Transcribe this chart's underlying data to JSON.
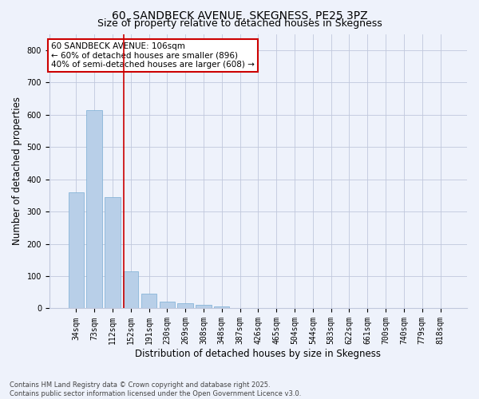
{
  "title": "60, SANDBECK AVENUE, SKEGNESS, PE25 3PZ",
  "subtitle": "Size of property relative to detached houses in Skegness",
  "xlabel": "Distribution of detached houses by size in Skegness",
  "ylabel": "Number of detached properties",
  "categories": [
    "34sqm",
    "73sqm",
    "112sqm",
    "152sqm",
    "191sqm",
    "230sqm",
    "269sqm",
    "308sqm",
    "348sqm",
    "387sqm",
    "426sqm",
    "465sqm",
    "504sqm",
    "544sqm",
    "583sqm",
    "622sqm",
    "661sqm",
    "700sqm",
    "740sqm",
    "779sqm",
    "818sqm"
  ],
  "values": [
    360,
    615,
    345,
    115,
    45,
    20,
    15,
    10,
    5,
    2,
    2,
    2,
    0,
    0,
    0,
    0,
    0,
    0,
    0,
    0,
    2
  ],
  "bar_color": "#b8cfe8",
  "bar_edge_color": "#7aadd4",
  "vline_x": 2.6,
  "vline_color": "#cc0000",
  "annotation_text": "60 SANDBECK AVENUE: 106sqm\n← 60% of detached houses are smaller (896)\n40% of semi-detached houses are larger (608) →",
  "annotation_box_color": "#ffffff",
  "annotation_box_edge_color": "#cc0000",
  "ylim": [
    0,
    850
  ],
  "yticks": [
    0,
    100,
    200,
    300,
    400,
    500,
    600,
    700,
    800
  ],
  "bg_color": "#eef2fb",
  "plot_bg_color": "#eef2fb",
  "footer_line1": "Contains HM Land Registry data © Crown copyright and database right 2025.",
  "footer_line2": "Contains public sector information licensed under the Open Government Licence v3.0.",
  "title_fontsize": 10,
  "subtitle_fontsize": 9,
  "tick_fontsize": 7,
  "label_fontsize": 8.5,
  "annotation_fontsize": 7.5,
  "footer_fontsize": 6
}
